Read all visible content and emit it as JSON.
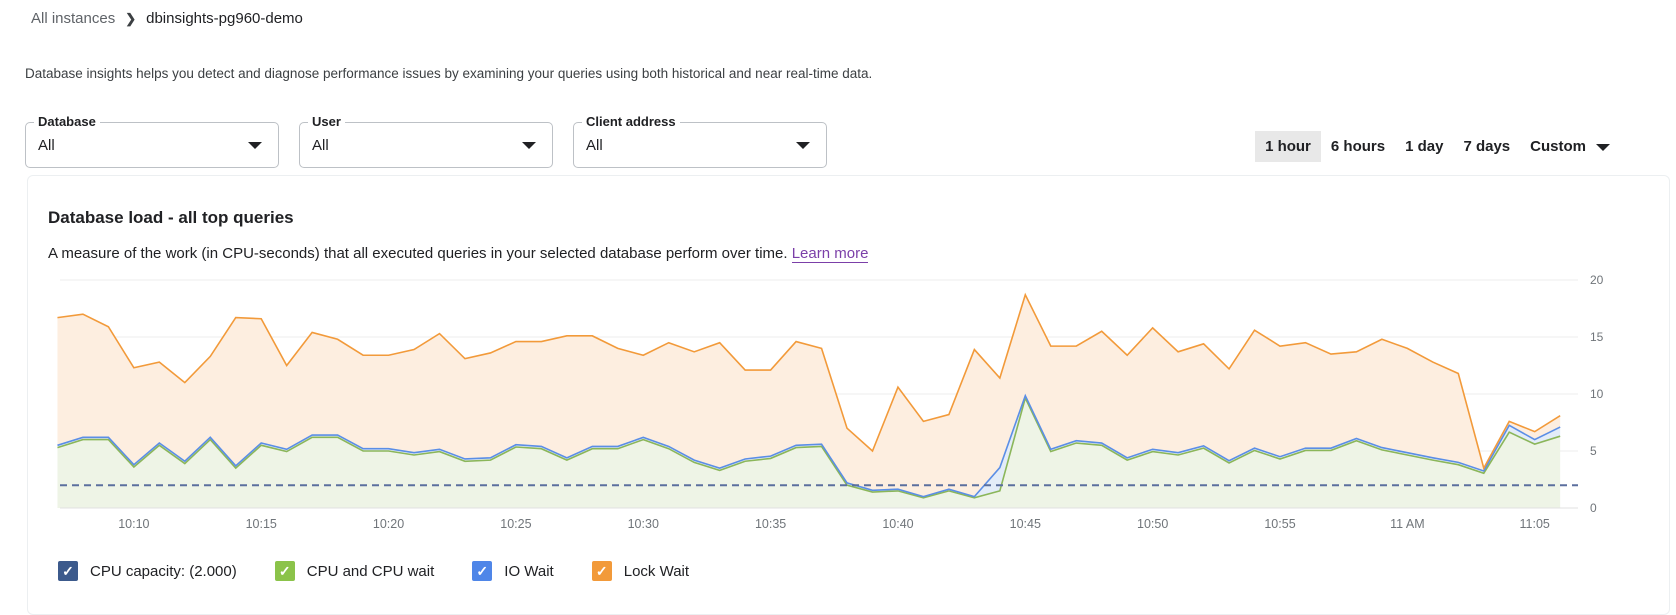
{
  "breadcrumb": {
    "parent": "All instances",
    "separator": "❯",
    "current": "dbinsights-pg960-demo"
  },
  "description": "Database insights helps you detect and diagnose performance issues by examining your queries using both historical and near real-time data.",
  "filters": [
    {
      "label": "Database",
      "value": "All"
    },
    {
      "label": "User",
      "value": "All"
    },
    {
      "label": "Client address",
      "value": "All"
    }
  ],
  "time_ranges": {
    "options": [
      "1 hour",
      "6 hours",
      "1 day",
      "7 days"
    ],
    "selected": "1 hour",
    "custom": "Custom"
  },
  "card": {
    "title": "Database load - all top queries",
    "subtitle": "A measure of the work (in CPU-seconds) that all executed queries in your selected database perform over time.",
    "learn_more": "Learn more"
  },
  "legend": [
    {
      "label": "CPU capacity: (2.000)",
      "color": "#3c5a8c",
      "checked": true
    },
    {
      "label": "CPU and CPU wait",
      "color": "#8bc34a",
      "checked": true
    },
    {
      "label": "IO Wait",
      "color": "#4f86e8",
      "checked": true
    },
    {
      "label": "Lock Wait",
      "color": "#f29a3a",
      "checked": true
    }
  ],
  "chart_data": {
    "type": "area",
    "stacked": true,
    "xlim": [
      "10:07",
      "11:07"
    ],
    "ylim": [
      0,
      20
    ],
    "yticks": [
      0,
      5,
      10,
      15,
      20
    ],
    "y_axis_side": "right",
    "xticks": [
      {
        "t": "10:10",
        "label": "10:10"
      },
      {
        "t": "10:15",
        "label": "10:15"
      },
      {
        "t": "10:20",
        "label": "10:20"
      },
      {
        "t": "10:25",
        "label": "10:25"
      },
      {
        "t": "10:30",
        "label": "10:30"
      },
      {
        "t": "10:35",
        "label": "10:35"
      },
      {
        "t": "10:40",
        "label": "10:40"
      },
      {
        "t": "10:45",
        "label": "10:45"
      },
      {
        "t": "10:50",
        "label": "10:50"
      },
      {
        "t": "10:55",
        "label": "10:55"
      },
      {
        "t": "11:00",
        "label": "11 AM"
      },
      {
        "t": "11:05",
        "label": "11:05"
      }
    ],
    "grid": true,
    "capacity": {
      "name": "CPU capacity: (2.000)",
      "value": 2.0,
      "color": "#5b6f9e",
      "style": "dashed"
    },
    "x": [
      "10:07",
      "10:08",
      "10:09",
      "10:10",
      "10:11",
      "10:12",
      "10:13",
      "10:14",
      "10:15",
      "10:16",
      "10:17",
      "10:18",
      "10:19",
      "10:20",
      "10:21",
      "10:22",
      "10:23",
      "10:24",
      "10:25",
      "10:26",
      "10:27",
      "10:28",
      "10:29",
      "10:30",
      "10:31",
      "10:32",
      "10:33",
      "10:34",
      "10:35",
      "10:36",
      "10:37",
      "10:38",
      "10:39",
      "10:40",
      "10:41",
      "10:42",
      "10:43",
      "10:44",
      "10:45",
      "10:46",
      "10:47",
      "10:48",
      "10:49",
      "10:50",
      "10:51",
      "10:52",
      "10:53",
      "10:54",
      "10:55",
      "10:56",
      "10:57",
      "10:58",
      "10:59",
      "11:00",
      "11:01",
      "11:02",
      "11:03",
      "11:04",
      "11:05",
      "11:06"
    ],
    "series": [
      {
        "name": "CPU and CPU wait",
        "color": "#8bb65a",
        "fill": "#eef4e6",
        "values": [
          5.3,
          6.0,
          6.0,
          3.6,
          5.5,
          3.9,
          6.0,
          3.5,
          5.5,
          4.95,
          6.2,
          6.2,
          5.0,
          5.0,
          4.65,
          4.95,
          4.1,
          4.2,
          5.35,
          5.2,
          4.2,
          5.2,
          5.2,
          6.0,
          5.2,
          4.0,
          3.3,
          4.1,
          4.35,
          5.3,
          5.4,
          2.0,
          1.4,
          1.5,
          0.9,
          1.5,
          0.9,
          1.5,
          9.65,
          4.95,
          5.7,
          5.5,
          4.2,
          4.95,
          4.65,
          5.25,
          3.95,
          5.05,
          4.3,
          5.05,
          5.05,
          5.9,
          5.1,
          4.65,
          4.2,
          3.8,
          3.05,
          6.65,
          5.6,
          6.3
        ]
      },
      {
        "name": "IO Wait",
        "color": "#5b8ee6",
        "fill": "#e3ecf8",
        "values": [
          0.2,
          0.2,
          0.2,
          0.2,
          0.2,
          0.2,
          0.2,
          0.2,
          0.2,
          0.2,
          0.2,
          0.2,
          0.2,
          0.2,
          0.2,
          0.2,
          0.2,
          0.2,
          0.2,
          0.2,
          0.2,
          0.2,
          0.2,
          0.2,
          0.2,
          0.2,
          0.2,
          0.2,
          0.2,
          0.2,
          0.2,
          0.2,
          0.15,
          0.15,
          0.1,
          0.15,
          0.1,
          2.05,
          0.2,
          0.2,
          0.2,
          0.2,
          0.2,
          0.2,
          0.2,
          0.2,
          0.2,
          0.2,
          0.2,
          0.2,
          0.2,
          0.2,
          0.2,
          0.2,
          0.2,
          0.2,
          0.2,
          0.6,
          0.4,
          0.8
        ]
      },
      {
        "name": "Lock Wait",
        "color": "#f29a3a",
        "fill": "#fdeee0",
        "values": [
          11.2,
          10.8,
          9.7,
          8.5,
          7.1,
          6.9,
          7.1,
          13.0,
          10.9,
          7.35,
          9.0,
          8.4,
          8.2,
          8.2,
          9.05,
          10.15,
          8.8,
          9.2,
          9.05,
          9.2,
          10.7,
          9.7,
          8.6,
          7.2,
          9.1,
          9.5,
          11.0,
          7.8,
          7.55,
          9.1,
          8.4,
          4.8,
          3.45,
          8.95,
          6.6,
          6.55,
          12.9,
          7.85,
          8.85,
          9.05,
          8.3,
          9.8,
          9.0,
          10.65,
          8.85,
          8.95,
          8.05,
          10.35,
          9.7,
          9.25,
          8.25,
          7.6,
          9.5,
          9.15,
          8.4,
          7.8,
          0.25,
          0.35,
          0.7,
          1.0
        ]
      }
    ]
  }
}
